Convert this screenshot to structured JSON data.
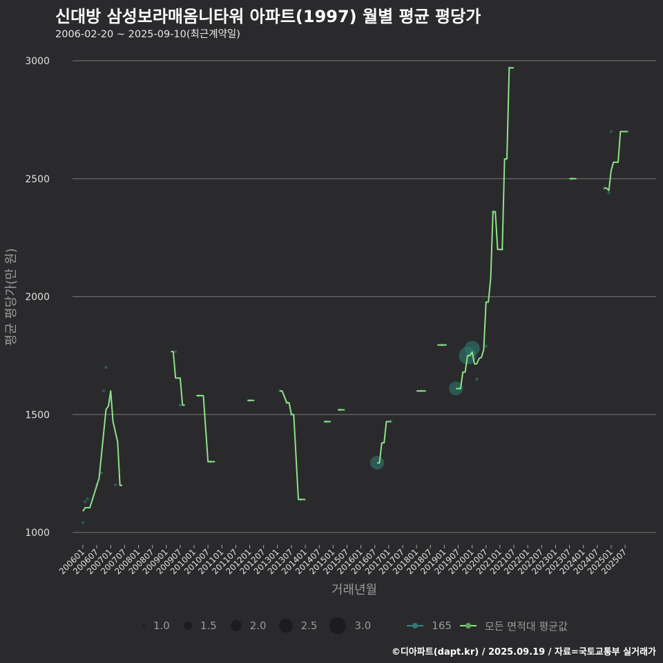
{
  "chart_data": {
    "type": "line",
    "title": "신대방 삼성보라매옴니타워 아파트(1997) 월별 평균 평당가",
    "subtitle": "2006-02-20 ~ 2025-09-10(최근계약일)",
    "xlabel": "거래년월",
    "ylabel": "평균 평당가(만 원)",
    "ylim": [
      1000,
      3000
    ],
    "yticks": [
      1000,
      1500,
      2000,
      2500,
      3000
    ],
    "xticks": [
      "200601",
      "200607",
      "200701",
      "200707",
      "200801",
      "200807",
      "200901",
      "200907",
      "201001",
      "201007",
      "201101",
      "201107",
      "201201",
      "201207",
      "201301",
      "201307",
      "201401",
      "201407",
      "201501",
      "201507",
      "201601",
      "201607",
      "201701",
      "201707",
      "201801",
      "201807",
      "201901",
      "201907",
      "202001",
      "202007",
      "202101",
      "202107",
      "202201",
      "202207",
      "202301",
      "202307",
      "202401",
      "202407",
      "202501",
      "202507"
    ],
    "grid": true,
    "series": [
      {
        "name": "모든 면적대 평균값",
        "color": "#8fe388",
        "segments": [
          [
            [
              "200601",
              1090
            ],
            [
              "200602",
              1105
            ],
            [
              "200604",
              1105
            ],
            [
              "200608",
              1230
            ],
            [
              "200611",
              1522
            ],
            [
              "200612",
              1535
            ],
            [
              "200701",
              1600
            ],
            [
              "200702",
              1470
            ],
            [
              "200704",
              1385
            ],
            [
              "200705",
              1200
            ],
            [
              "200706",
              1200
            ]
          ],
          [
            [
              "200903",
              1767
            ],
            [
              "200904",
              1767
            ],
            [
              "200905",
              1655
            ],
            [
              "200907",
              1655
            ],
            [
              "200908",
              1540
            ],
            [
              "200909",
              1540
            ]
          ],
          [
            [
              "201002",
              1580
            ],
            [
              "201005",
              1580
            ],
            [
              "201007",
              1300
            ],
            [
              "201010",
              1300
            ]
          ],
          [
            [
              "201112",
              1560
            ],
            [
              "201203",
              1560
            ]
          ],
          [
            [
              "201302",
              1600
            ],
            [
              "201303",
              1600
            ],
            [
              "201305",
              1550
            ],
            [
              "201306",
              1550
            ],
            [
              "201307",
              1500
            ],
            [
              "201308",
              1500
            ],
            [
              "201310",
              1140
            ],
            [
              "201401",
              1140
            ]
          ],
          [
            [
              "201409",
              1470
            ],
            [
              "201412",
              1470
            ]
          ],
          [
            [
              "201503",
              1520
            ],
            [
              "201506",
              1520
            ]
          ],
          [
            [
              "201608",
              1295
            ],
            [
              "201609",
              1295
            ],
            [
              "201610",
              1380
            ],
            [
              "201611",
              1380
            ],
            [
              "201612",
              1470
            ],
            [
              "201702",
              1470
            ]
          ],
          [
            [
              "201801",
              1600
            ],
            [
              "201805",
              1600
            ]
          ],
          [
            [
              "201810",
              1795
            ],
            [
              "201902",
              1795
            ]
          ],
          [
            [
              "201906",
              1610
            ],
            [
              "201908",
              1610
            ],
            [
              "201909",
              1680
            ],
            [
              "201910",
              1680
            ],
            [
              "201911",
              1750
            ],
            [
              "201912",
              1750
            ],
            [
              "202001",
              1765
            ],
            [
              "202002",
              1715
            ],
            [
              "202003",
              1715
            ],
            [
              "202004",
              1738
            ],
            [
              "202005",
              1742
            ],
            [
              "202006",
              1775
            ],
            [
              "202007",
              1977
            ],
            [
              "202008",
              1977
            ],
            [
              "202009",
              2077
            ],
            [
              "202010",
              2360
            ],
            [
              "202011",
              2360
            ],
            [
              "202012",
              2200
            ],
            [
              "202102",
              2200
            ],
            [
              "202103",
              2584
            ],
            [
              "202104",
              2584
            ],
            [
              "202105",
              2970
            ],
            [
              "202107",
              2970
            ]
          ],
          [
            [
              "202307",
              2500
            ],
            [
              "202310",
              2500
            ]
          ],
          [
            [
              "202410",
              2460
            ],
            [
              "202411",
              2460
            ],
            [
              "202412",
              2450
            ],
            [
              "202501",
              2535
            ],
            [
              "202502",
              2570
            ],
            [
              "202504",
              2570
            ],
            [
              "202505",
              2700
            ],
            [
              "202508",
              2700
            ]
          ]
        ]
      },
      {
        "name": "165",
        "color": "#2f7a70",
        "points": [
          [
            "200601",
            1042,
            1
          ],
          [
            "200602",
            1130,
            1
          ],
          [
            "200603",
            1142,
            1
          ],
          [
            "200607",
            1202,
            1
          ],
          [
            "200609",
            1252,
            1
          ],
          [
            "200610",
            1600,
            1
          ],
          [
            "200611",
            1700,
            1
          ],
          [
            "200701",
            1560,
            1
          ],
          [
            "200703",
            1202,
            1
          ],
          [
            "200905",
            1767,
            1
          ],
          [
            "200907",
            1540,
            1
          ],
          [
            "201003",
            1580,
            1
          ],
          [
            "201008",
            1300,
            1
          ],
          [
            "201201",
            1560,
            1
          ],
          [
            "201302",
            1600,
            1
          ],
          [
            "201305",
            1550,
            1
          ],
          [
            "201307",
            1500,
            1
          ],
          [
            "201311",
            1140,
            1
          ],
          [
            "201410",
            1470,
            1
          ],
          [
            "201504",
            1520,
            1
          ],
          [
            "201608",
            1296,
            2.5
          ],
          [
            "201702",
            1472,
            1
          ],
          [
            "201803",
            1600,
            1
          ],
          [
            "201812",
            1795,
            1
          ],
          [
            "201906",
            1611,
            2.5
          ],
          [
            "201911",
            1750,
            3
          ],
          [
            "202001",
            1780,
            2.7
          ],
          [
            "202003",
            1650,
            1
          ],
          [
            "202007",
            1790,
            1
          ],
          [
            "202010",
            2360,
            1
          ],
          [
            "202102",
            2200,
            1
          ],
          [
            "202105",
            2970,
            1
          ],
          [
            "202308",
            2500,
            1
          ],
          [
            "202410",
            2460,
            1
          ],
          [
            "202412",
            2440,
            1
          ],
          [
            "202501",
            2700,
            1
          ],
          [
            "202508",
            2700,
            1
          ]
        ]
      }
    ],
    "size_legend": [
      "1.0",
      "1.5",
      "2.0",
      "2.5",
      "3.0"
    ],
    "color_legend": [
      "165",
      "모든 면적대 평균값"
    ],
    "legend_position": "bottom"
  },
  "footer": "©디아파트(dapt.kr) / 2025.09.19 / 자료=국토교통부 실거래가"
}
